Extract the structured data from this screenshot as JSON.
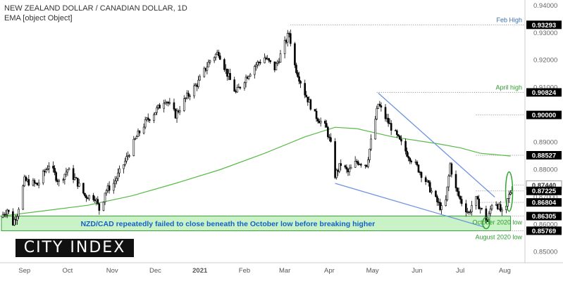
{
  "header": {
    "title": "NEW ZEALAND DOLLAR / CANADIAN DOLLAR, 1D",
    "indicator": "EMA [object Object]"
  },
  "logo": {
    "text": "CITY INDEX"
  },
  "colors": {
    "candle": "#000000",
    "ema": "#55bb44",
    "trendline": "#6f93e0",
    "support_fill": "#c9f2c6",
    "support_border": "#2fa82f",
    "level_line": "#888888",
    "highlight_label_bg": "#000000",
    "green_label": "#2e9a2e"
  },
  "chart_data": {
    "type": "candlestick",
    "title": "NEW ZEALAND DOLLAR / CANADIAN DOLLAR, 1D",
    "ylim": [
      0.846,
      0.942
    ],
    "y_ticks": [
      0.85,
      0.86,
      0.87,
      0.88,
      0.89,
      0.9,
      0.91,
      0.92,
      0.93,
      0.94
    ],
    "y_tick_labels": [
      "0.85000",
      "0.86000",
      "0.87000",
      "0.88000",
      "0.89000",
      "0.90000",
      "0.91000",
      "0.92000",
      "0.93000",
      "0.94000"
    ],
    "x_tick_labels": [
      "Sep",
      "Oct",
      "Nov",
      "Dec",
      "2021",
      "Feb",
      "Mar",
      "Apr",
      "May",
      "Jun",
      "Jul",
      "Aug"
    ],
    "x_tick_months": [
      "2020-09",
      "2020-10",
      "2020-11",
      "2020-12",
      "2021-01",
      "2021-02",
      "2021-03",
      "2021-04",
      "2021-05",
      "2021-06",
      "2021-07",
      "2021-08"
    ],
    "x_range": [
      "2020-08-15",
      "2021-08-15"
    ],
    "path_points": [
      [
        "2020-08-15",
        0.8625
      ],
      [
        "2020-08-20",
        0.8655
      ],
      [
        "2020-08-24",
        0.8605
      ],
      [
        "2020-08-27",
        0.864
      ],
      [
        "2020-09-01",
        0.876
      ],
      [
        "2020-09-10",
        0.8745
      ],
      [
        "2020-09-18",
        0.882
      ],
      [
        "2020-09-25",
        0.8755
      ],
      [
        "2020-10-01",
        0.88
      ],
      [
        "2020-10-07",
        0.876
      ],
      [
        "2020-10-13",
        0.8705
      ],
      [
        "2020-10-20",
        0.87
      ],
      [
        "2020-10-24",
        0.864
      ],
      [
        "2020-10-27",
        0.872
      ],
      [
        "2020-11-02",
        0.875
      ],
      [
        "2020-11-10",
        0.883
      ],
      [
        "2020-11-18",
        0.892
      ],
      [
        "2020-11-25",
        0.898
      ],
      [
        "2020-12-03",
        0.9025
      ],
      [
        "2020-12-08",
        0.906
      ],
      [
        "2020-12-15",
        0.9
      ],
      [
        "2020-12-22",
        0.906
      ],
      [
        "2020-12-31",
        0.912
      ],
      [
        "2021-01-08",
        0.92
      ],
      [
        "2021-01-14",
        0.923
      ],
      [
        "2021-01-20",
        0.915
      ],
      [
        "2021-01-26",
        0.908
      ],
      [
        "2021-02-01",
        0.913
      ],
      [
        "2021-02-08",
        0.918
      ],
      [
        "2021-02-15",
        0.921
      ],
      [
        "2021-02-22",
        0.917
      ],
      [
        "2021-02-27",
        0.923
      ],
      [
        "2021-03-01",
        0.926
      ],
      [
        "2021-03-04",
        0.93
      ],
      [
        "2021-03-08",
        0.918
      ],
      [
        "2021-03-15",
        0.908
      ],
      [
        "2021-03-22",
        0.9
      ],
      [
        "2021-03-27",
        0.897
      ],
      [
        "2021-03-30",
        0.895
      ],
      [
        "2021-04-02",
        0.889
      ],
      [
        "2021-04-05",
        0.878
      ],
      [
        "2021-04-09",
        0.882
      ],
      [
        "2021-04-14",
        0.879
      ],
      [
        "2021-04-20",
        0.883
      ],
      [
        "2021-04-27",
        0.882
      ],
      [
        "2021-05-01",
        0.893
      ],
      [
        "2021-05-05",
        0.904
      ],
      [
        "2021-05-10",
        0.899
      ],
      [
        "2021-05-18",
        0.892
      ],
      [
        "2021-05-25",
        0.886
      ],
      [
        "2021-06-01",
        0.881
      ],
      [
        "2021-06-07",
        0.876
      ],
      [
        "2021-06-14",
        0.869
      ],
      [
        "2021-06-20",
        0.864
      ],
      [
        "2021-06-24",
        0.882
      ],
      [
        "2021-06-27",
        0.874
      ],
      [
        "2021-07-01",
        0.869
      ],
      [
        "2021-07-07",
        0.864
      ],
      [
        "2021-07-11",
        0.87
      ],
      [
        "2021-07-15",
        0.866
      ],
      [
        "2021-07-20",
        0.861
      ],
      [
        "2021-07-24",
        0.87
      ],
      [
        "2021-07-28",
        0.866
      ],
      [
        "2021-08-01",
        0.862
      ],
      [
        "2021-08-03",
        0.869
      ],
      [
        "2021-08-06",
        0.8735
      ]
    ],
    "ema_points": [
      [
        "2020-08-15",
        0.863
      ],
      [
        "2020-09-15",
        0.865
      ],
      [
        "2020-10-15",
        0.867
      ],
      [
        "2020-11-15",
        0.8705
      ],
      [
        "2020-12-15",
        0.875
      ],
      [
        "2021-01-15",
        0.88
      ],
      [
        "2021-02-15",
        0.886
      ],
      [
        "2021-03-15",
        0.892
      ],
      [
        "2021-04-05",
        0.8955
      ],
      [
        "2021-04-20",
        0.895
      ],
      [
        "2021-05-15",
        0.892
      ],
      [
        "2021-06-15",
        0.8895
      ],
      [
        "2021-07-01",
        0.888
      ],
      [
        "2021-07-15",
        0.886
      ],
      [
        "2021-08-05",
        0.885
      ]
    ],
    "levels": [
      {
        "value": 0.93293,
        "label": "0.93293",
        "annotation": "Feb High",
        "from": "2021-03-05"
      },
      {
        "value": 0.90824,
        "label": "0.90824",
        "annotation": "April high",
        "from": "2021-05-04"
      },
      {
        "value": 0.9,
        "label": "0.90000",
        "annotation": "",
        "from": "2021-07-12"
      },
      {
        "value": 0.88527,
        "label": "0.88527",
        "annotation": "",
        "from": "2021-07-12"
      },
      {
        "value": 0.8744,
        "label": "0.87440",
        "annotation": "",
        "from": "2021-08-06",
        "current": true
      },
      {
        "value": 0.87225,
        "label": "0.87225",
        "annotation": "",
        "from": "2021-07-12"
      },
      {
        "value": 0.86804,
        "label": "0.86804",
        "annotation": "",
        "from": "2021-07-12"
      },
      {
        "value": 0.86305,
        "label": "0.86305",
        "annotation": "October 2020 low",
        "from": "2021-07-12"
      },
      {
        "value": 0.85769,
        "label": "0.85769",
        "annotation": "August 2020 low",
        "from": "2021-07-12"
      }
    ],
    "support_zone": {
      "from": "2020-08-16",
      "to": "2021-08-05",
      "low": 0.85769,
      "high": 0.86305
    },
    "support_text": "NZD/CAD repeatedly failed to close beneath the October low before breaking higher",
    "trendlines": [
      [
        [
          "2021-04-05",
          0.875
        ],
        [
          "2021-07-18",
          0.859
        ]
      ],
      [
        [
          "2021-05-05",
          0.908
        ],
        [
          "2021-07-25",
          0.87
        ]
      ]
    ],
    "circled_bars": [
      [
        "2021-07-19",
        0.8605
      ],
      [
        "2021-08-04",
        0.872
      ]
    ]
  }
}
